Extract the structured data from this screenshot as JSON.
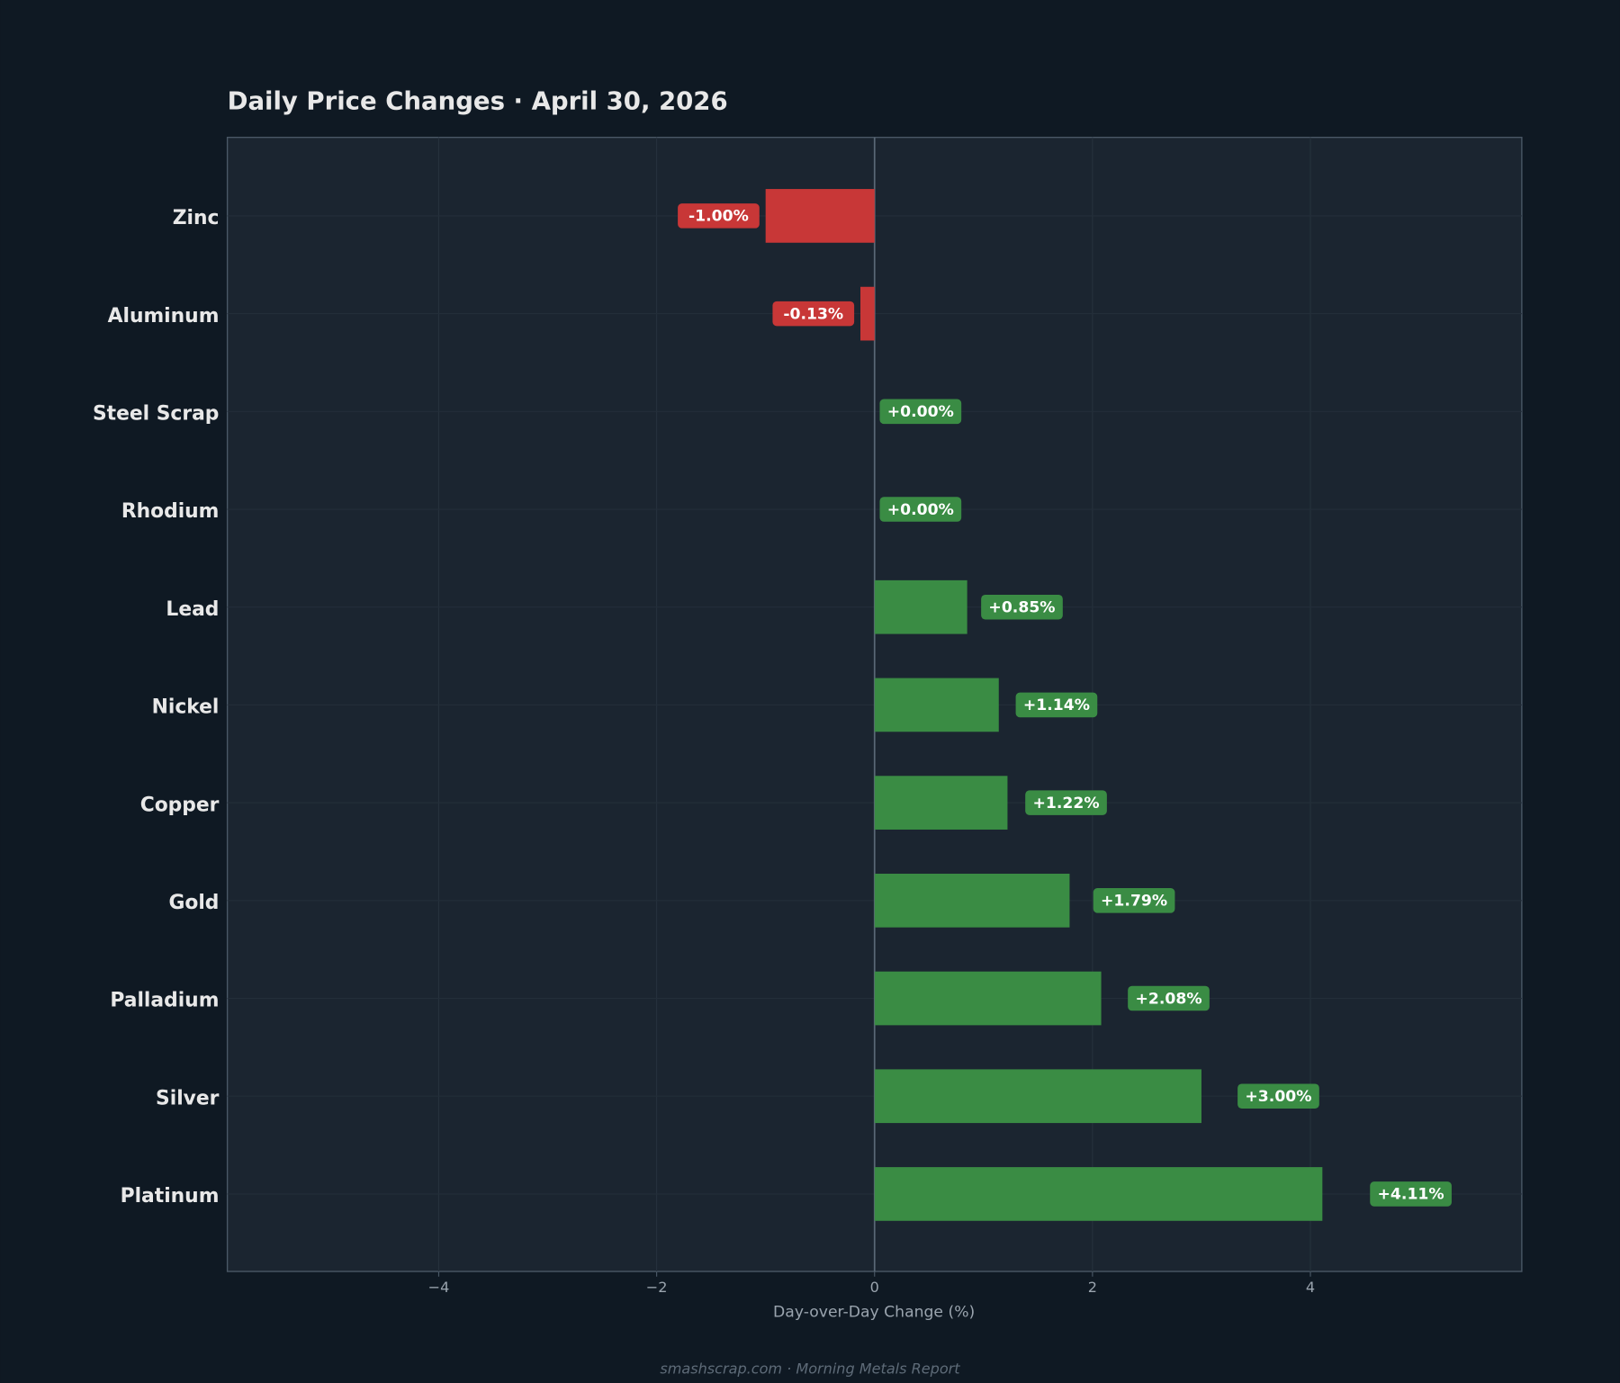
{
  "chart_data": {
    "type": "barh",
    "title": "Daily Price Changes  ·  April 30, 2026",
    "xlabel": "Day-over-Day Change (%)",
    "footer": "smashscrap.com  ·  Morning Metals Report",
    "categories": [
      "Zinc",
      "Aluminum",
      "Steel Scrap",
      "Rhodium",
      "Lead",
      "Nickel",
      "Copper",
      "Gold",
      "Palladium",
      "Silver",
      "Platinum"
    ],
    "values": [
      -1.0,
      -0.13,
      0.0,
      0.0,
      0.85,
      1.14,
      1.22,
      1.79,
      2.08,
      3.0,
      4.11
    ],
    "value_labels": [
      "-1.00%",
      "-0.13%",
      "+0.00%",
      "+0.00%",
      "+0.85%",
      "+1.14%",
      "+1.22%",
      "+1.79%",
      "+2.08%",
      "+3.00%",
      "+4.11%"
    ],
    "positive_color": "#3a8c44",
    "negative_color": "#c83737",
    "xlim": [
      -5.94,
      5.94
    ],
    "xticks": [
      {
        "value": -4,
        "label": "−4"
      },
      {
        "value": -2,
        "label": "−2"
      },
      0,
      2,
      4
    ],
    "grid": true
  }
}
